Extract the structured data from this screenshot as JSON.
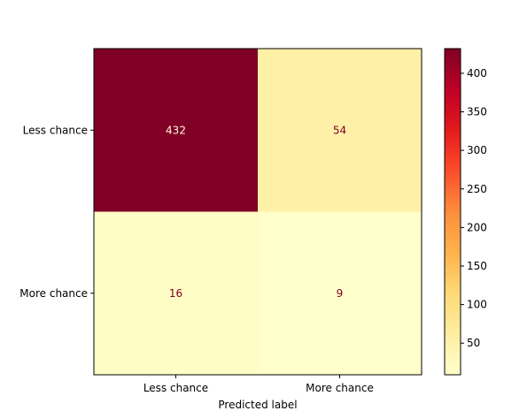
{
  "chart_data": {
    "type": "heatmap",
    "title": "",
    "xlabel": "Predicted label",
    "ylabel": "",
    "x_categories": [
      "Less chance",
      "More chance"
    ],
    "y_categories": [
      "Less chance",
      "More chance"
    ],
    "matrix": [
      [
        432,
        54
      ],
      [
        16,
        9
      ]
    ],
    "colormap": "YlOrRd",
    "colorbar": {
      "range": [
        9,
        432
      ],
      "ticks": [
        50,
        100,
        150,
        200,
        250,
        300,
        350,
        400
      ]
    },
    "grid": false
  }
}
